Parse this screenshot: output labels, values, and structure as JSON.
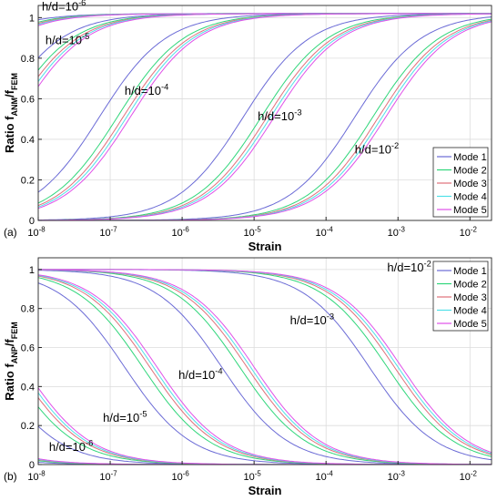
{
  "colors": {
    "mode1": "#6b6bd6",
    "mode2": "#2fd67a",
    "mode3": "#e0707a",
    "mode4": "#4fe0e8",
    "mode5": "#e050e8"
  },
  "chart_data": [
    {
      "panel": "(a)",
      "type": "line",
      "ylabel_main": "Ratio f",
      "ylabel_sub1": "ANM",
      "ylabel_mid": "/f",
      "ylabel_sub2": "FEM",
      "xlabel": "Strain",
      "xscale": "log",
      "xlim_log10": [
        -8,
        -1.7
      ],
      "ylim": [
        0,
        1.06
      ],
      "xticks": [
        {
          "e": -8,
          "label_base": "10",
          "label_exp": "-8"
        },
        {
          "e": -7,
          "label_base": "10",
          "label_exp": "-7"
        },
        {
          "e": -6,
          "label_base": "10",
          "label_exp": "-6"
        },
        {
          "e": -5,
          "label_base": "10",
          "label_exp": "-5"
        },
        {
          "e": -4,
          "label_base": "10",
          "label_exp": "-4"
        },
        {
          "e": -3,
          "label_base": "10",
          "label_exp": "-3"
        },
        {
          "e": -2,
          "label_base": "10",
          "label_exp": "-2"
        }
      ],
      "yticks": [
        0,
        0.2,
        0.4,
        0.6,
        0.8,
        1
      ],
      "ytick_labels": [
        "0",
        "0.2",
        "0.4",
        "0.6",
        "0.8",
        "1"
      ],
      "legend": {
        "position": "right-lower",
        "entries": [
          "Mode 1",
          "Mode 2",
          "Mode 3",
          "Mode 4",
          "Mode 5"
        ]
      },
      "annotations": [
        {
          "text_base": "h/d=10",
          "text_exp": "-6",
          "x_log10": -7.95,
          "y": 1.035
        },
        {
          "text_base": "h/d=10",
          "text_exp": "-5",
          "x_log10": -7.9,
          "y": 0.87
        },
        {
          "text_base": "h/d=10",
          "text_exp": "-4",
          "x_log10": -6.8,
          "y": 0.62
        },
        {
          "text_base": "h/d=10",
          "text_exp": "-3",
          "x_log10": -4.95,
          "y": 0.495
        },
        {
          "text_base": "h/d=10",
          "text_exp": "-2",
          "x_log10": -3.6,
          "y": 0.33
        }
      ],
      "families": [
        {
          "hd": "10^-6",
          "increasing": true,
          "k": 1.4,
          "mid_log10": [
            -9.6,
            -9.45,
            -9.38,
            -9.33,
            -9.28
          ],
          "y_at_1e-8": [
            0.93,
            0.92,
            0.91,
            0.91,
            0.9
          ]
        },
        {
          "hd": "10^-5",
          "increasing": true,
          "k": 1.4,
          "mid_log10": [
            -8.6,
            -8.45,
            -8.38,
            -8.33,
            -8.28
          ]
        },
        {
          "hd": "10^-4",
          "increasing": true,
          "k": 1.4,
          "mid_log10": [
            -7.15,
            -6.9,
            -6.82,
            -6.77,
            -6.72
          ]
        },
        {
          "hd": "10^-3",
          "increasing": true,
          "k": 1.4,
          "mid_log10": [
            -5.15,
            -4.9,
            -4.82,
            -4.77,
            -4.72
          ]
        },
        {
          "hd": "10^-2",
          "increasing": true,
          "k": 1.4,
          "mid_log10": [
            -3.6,
            -3.35,
            -3.27,
            -3.22,
            -3.17
          ]
        }
      ]
    },
    {
      "panel": "(b)",
      "type": "line",
      "ylabel_main": "Ratio f",
      "ylabel_sub1": "ANP",
      "ylabel_mid": "/f",
      "ylabel_sub2": "FEM",
      "xlabel": "Strain",
      "xscale": "log",
      "xlim_log10": [
        -8,
        -1.7
      ],
      "ylim": [
        0,
        1.06
      ],
      "xticks": [
        {
          "e": -8,
          "label_base": "10",
          "label_exp": "-8"
        },
        {
          "e": -7,
          "label_base": "10",
          "label_exp": "-7"
        },
        {
          "e": -6,
          "label_base": "10",
          "label_exp": "-6"
        },
        {
          "e": -5,
          "label_base": "10",
          "label_exp": "-5"
        },
        {
          "e": -4,
          "label_base": "10",
          "label_exp": "-4"
        },
        {
          "e": -3,
          "label_base": "10",
          "label_exp": "-3"
        },
        {
          "e": -2,
          "label_base": "10",
          "label_exp": "-2"
        }
      ],
      "yticks": [
        0,
        0.2,
        0.4,
        0.6,
        0.8,
        1
      ],
      "ytick_labels": [
        "0",
        "0.2",
        "0.4",
        "0.6",
        "0.8",
        "1"
      ],
      "legend": {
        "position": "top-right",
        "entries": [
          "Mode 1",
          "Mode 2",
          "Mode 3",
          "Mode 4",
          "Mode 5"
        ]
      },
      "annotations": [
        {
          "text_base": "h/d=10",
          "text_exp": "-6",
          "x_log10": -7.85,
          "y": 0.07
        },
        {
          "text_base": "h/d=10",
          "text_exp": "-5",
          "x_log10": -7.1,
          "y": 0.22
        },
        {
          "text_base": "h/d=10",
          "text_exp": "-4",
          "x_log10": -6.05,
          "y": 0.44
        },
        {
          "text_base": "h/d=10",
          "text_exp": "-3",
          "x_log10": -4.5,
          "y": 0.72
        },
        {
          "text_base": "h/d=10",
          "text_exp": "-2",
          "x_log10": -3.15,
          "y": 0.99
        }
      ],
      "families": [
        {
          "hd": "10^-6",
          "increasing": false,
          "k": 1.4,
          "mid_log10": [
            -10.05,
            -9.8,
            -9.7,
            -9.65,
            -9.6
          ]
        },
        {
          "hd": "10^-5",
          "increasing": false,
          "k": 1.4,
          "mid_log10": [
            -8.65,
            -8.4,
            -8.3,
            -8.25,
            -8.2
          ]
        },
        {
          "hd": "10^-4",
          "increasing": false,
          "k": 1.4,
          "mid_log10": [
            -6.8,
            -6.55,
            -6.45,
            -6.4,
            -6.35
          ]
        },
        {
          "hd": "10^-3",
          "increasing": false,
          "k": 1.4,
          "mid_log10": [
            -5.45,
            -5.2,
            -5.1,
            -5.05,
            -5.0
          ]
        },
        {
          "hd": "10^-2",
          "increasing": false,
          "k": 1.4,
          "mid_log10": [
            -3.4,
            -3.15,
            -3.05,
            -3.0,
            -2.95
          ]
        }
      ]
    }
  ]
}
